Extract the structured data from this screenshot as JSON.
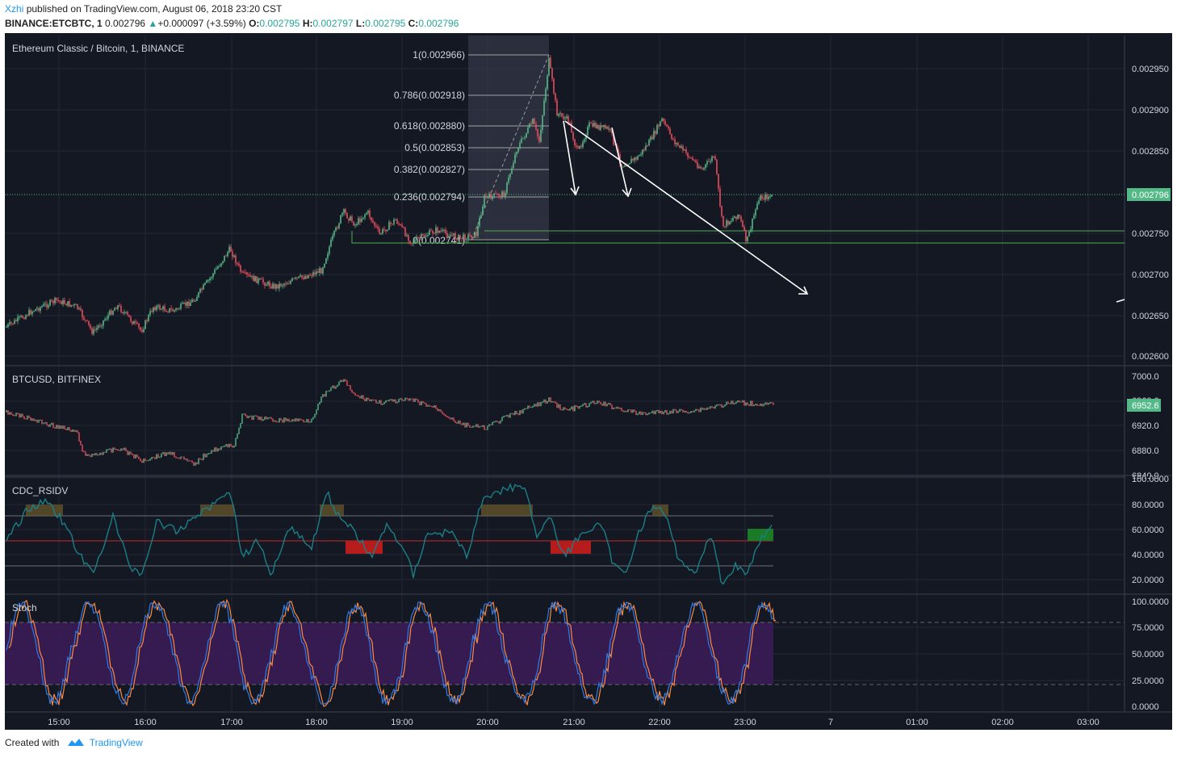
{
  "header": {
    "user": "Xzhi",
    "published": "published on TradingView.com, August 06, 2018 23:20 CST",
    "symbol": "BINANCE:ETCBTC, 1",
    "price": "0.002796",
    "change_arrow": "▲",
    "change": "+0.000097 (+3.59%)",
    "o_label": "O:",
    "o_value": "0.002795",
    "h_label": "H:",
    "h_value": "0.002797",
    "l_label": "L:",
    "l_value": "0.002795",
    "c_label": "C:",
    "c_value": "0.002796"
  },
  "panes": {
    "main_title": "Ethereum Classic / Bitcoin, 1, BINANCE",
    "btc_title": "BTCUSD, BITFINEX",
    "rsi_title": "CDC_RSIDV",
    "stoch_title": "Stoch"
  },
  "main_axis": [
    "0.002950",
    "0.002900",
    "0.002850",
    "0.002750",
    "0.002700",
    "0.002650",
    "0.002600"
  ],
  "main_last_price": "0.002796",
  "fib_levels": [
    "1(0.002966)",
    "0.786(0.002918)",
    "0.618(0.002880)",
    "0.5(0.002853)",
    "0.382(0.002827)",
    "0.236(0.002794)",
    "0(0.002741)"
  ],
  "btc_axis": [
    "7000.0",
    "6920.0",
    "6880.0",
    "6840.0"
  ],
  "btc_hidden_label": "6960.0",
  "btc_last_price": "6952.6",
  "rsi_axis": [
    "100.0000",
    "80.0000",
    "60.0000",
    "40.0000",
    "20.0000"
  ],
  "stoch_axis": [
    "100.0000",
    "75.0000",
    "50.0000",
    "25.0000",
    "0.0000"
  ],
  "time_axis": [
    "15:00",
    "16:00",
    "17:00",
    "18:00",
    "19:00",
    "20:00",
    "21:00",
    "22:00",
    "23:00",
    "7",
    "01:00",
    "02:00",
    "03:00"
  ],
  "footer": {
    "created_with": "Created with",
    "brand": "TradingView"
  },
  "colors": {
    "background": "#141823",
    "up": "#53b987",
    "down": "#eb4d5c",
    "accent": "#2196f3",
    "stoch_band": "#3b1c58",
    "rsi_line": "#1b7f86"
  }
}
